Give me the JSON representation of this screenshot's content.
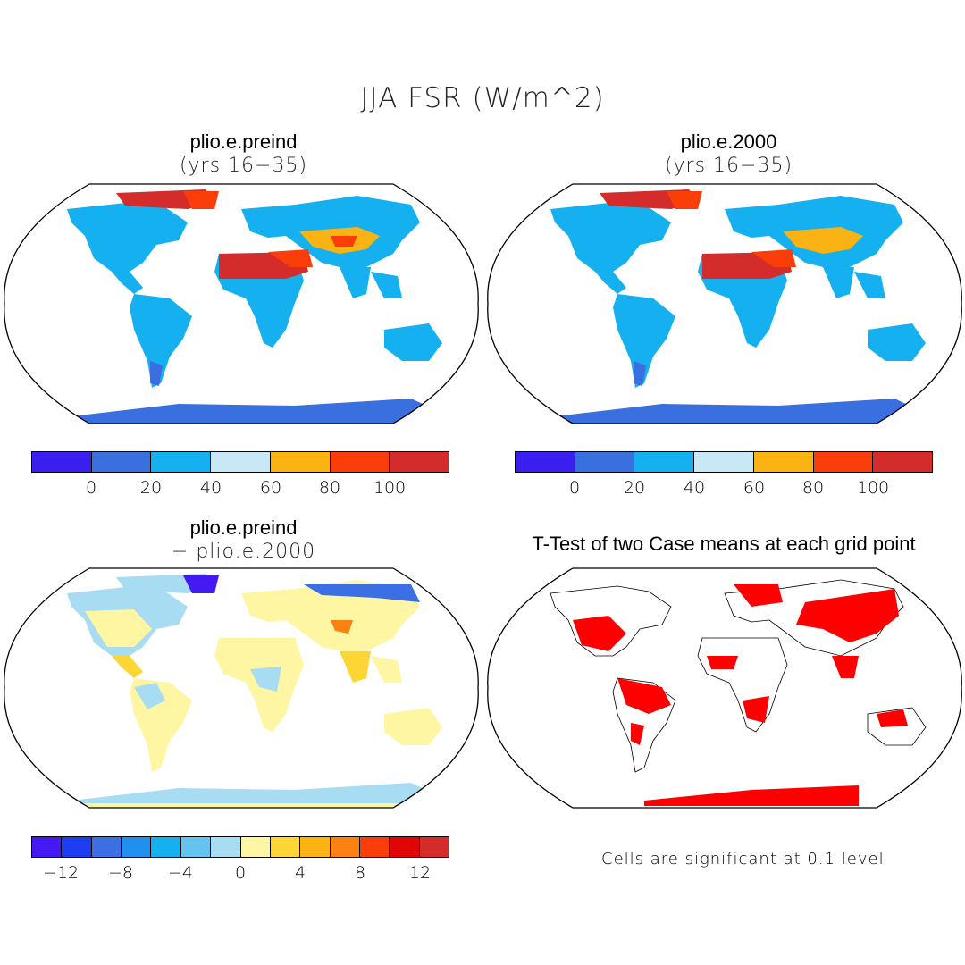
{
  "title": "JJA FSR (W/m^2)",
  "panels": {
    "top_left": {
      "title": "plio.e.preind",
      "subtitle": "(yrs 16−35)"
    },
    "top_right": {
      "title": "plio.e.2000",
      "subtitle": "(yrs 16−35)"
    },
    "bottom_left": {
      "title": "plio.e.preind",
      "subtitle": "− plio.e.2000"
    },
    "bottom_right": {
      "title": "T-Test of two Case means at each grid point",
      "note": "Cells are significant at 0.1 level"
    }
  },
  "colorbar_main": {
    "colors": [
      "#3b1ef0",
      "#3a6fe0",
      "#14b0f0",
      "#c8e8f6",
      "#fbb313",
      "#fb3d0a",
      "#d42b2b"
    ],
    "tick_labels": [
      "0",
      "20",
      "40",
      "60",
      "80",
      "100"
    ]
  },
  "colorbar_diff": {
    "colors": [
      "#4419f2",
      "#1d3ef0",
      "#3c6fe3",
      "#1f8ff0",
      "#14b0f0",
      "#64c3ef",
      "#a7dcf2",
      "#fff6a3",
      "#fdd636",
      "#fbb313",
      "#fb8113",
      "#fb3d0a",
      "#e20505",
      "#d42b2b"
    ],
    "tick_labels": [
      "−12",
      "−8",
      "−4",
      "0",
      "4",
      "8",
      "12"
    ]
  },
  "ttest_color": "#ff0000"
}
